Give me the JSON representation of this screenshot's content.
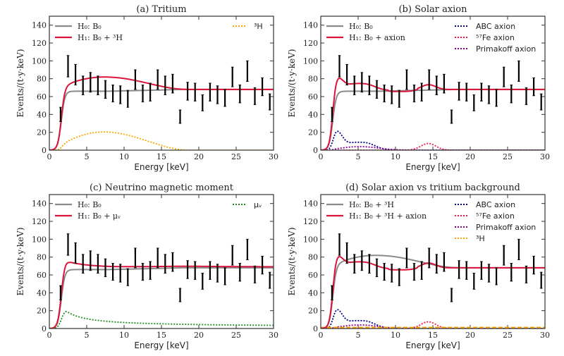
{
  "chart_data": [
    {
      "type": "line",
      "panel": "a",
      "title": "(a) Tritium",
      "xlabel": "Energy [keV]",
      "ylabel": "Events/(t·y·keV)",
      "xlim": [
        0,
        30
      ],
      "ylim": [
        0,
        150
      ],
      "xticks": [
        0,
        5,
        10,
        15,
        20,
        25,
        30
      ],
      "yticks": [
        0,
        20,
        40,
        60,
        80,
        100,
        120,
        140
      ],
      "legend_left": [
        {
          "label": "H₀: B₀",
          "color": "#8a8a8a",
          "style": "solid"
        },
        {
          "label": "H₁: B₀ + ³H",
          "color": "#dc143c",
          "style": "solid"
        }
      ],
      "legend_right": [
        {
          "label": "³H",
          "color": "#ffa500",
          "style": "dotted"
        }
      ],
      "series": [
        {
          "name": "H0",
          "color": "#8a8a8a",
          "style": "solid",
          "model": "flat_bg"
        },
        {
          "name": "H1",
          "color": "#dc143c",
          "style": "solid",
          "model": "bg_plus_tritium"
        },
        {
          "name": "tritium",
          "color": "#ffa500",
          "style": "dotted",
          "model": "tritium"
        }
      ]
    },
    {
      "type": "line",
      "panel": "b",
      "title": "(b) Solar axion",
      "xlabel": "Energy [keV]",
      "ylabel": "Events/(t·y·keV)",
      "xlim": [
        0,
        30
      ],
      "ylim": [
        0,
        150
      ],
      "xticks": [
        0,
        5,
        10,
        15,
        20,
        25,
        30
      ],
      "yticks": [
        0,
        20,
        40,
        60,
        80,
        100,
        120,
        140
      ],
      "legend_left": [
        {
          "label": "H₀: B₀",
          "color": "#8a8a8a",
          "style": "solid"
        },
        {
          "label": "H₁: B₀ + axion",
          "color": "#dc143c",
          "style": "solid"
        }
      ],
      "legend_right": [
        {
          "label": "ABC axion",
          "color": "#00008b",
          "style": "dotted"
        },
        {
          "label": "⁵⁷Fe axion",
          "color": "#ff1744",
          "style": "dotted"
        },
        {
          "label": "Primakoff axion",
          "color": "#8b008b",
          "style": "dotted"
        }
      ],
      "series": [
        {
          "name": "H0",
          "color": "#8a8a8a",
          "style": "solid",
          "model": "flat_bg"
        },
        {
          "name": "H1",
          "color": "#dc143c",
          "style": "solid",
          "model": "bg_plus_axion"
        },
        {
          "name": "ABC",
          "color": "#00008b",
          "style": "dotted",
          "model": "abc"
        },
        {
          "name": "Fe57",
          "color": "#ff1744",
          "style": "dotted",
          "model": "fe57"
        },
        {
          "name": "Primakoff",
          "color": "#8b008b",
          "style": "dotted",
          "model": "primakoff"
        }
      ]
    },
    {
      "type": "line",
      "panel": "c",
      "title": "(c) Neutrino magnetic moment",
      "xlabel": "Energy [keV]",
      "ylabel": "Events/(t·y·keV)",
      "xlim": [
        0,
        30
      ],
      "ylim": [
        0,
        150
      ],
      "xticks": [
        0,
        5,
        10,
        15,
        20,
        25,
        30
      ],
      "yticks": [
        0,
        20,
        40,
        60,
        80,
        100,
        120,
        140
      ],
      "legend_left": [
        {
          "label": "H₀: B₀",
          "color": "#8a8a8a",
          "style": "solid"
        },
        {
          "label": "H₁: B₀ + μᵥ",
          "color": "#dc143c",
          "style": "solid"
        }
      ],
      "legend_right": [
        {
          "label": "μᵥ",
          "color": "#228b22",
          "style": "dotted"
        }
      ],
      "series": [
        {
          "name": "H0",
          "color": "#8a8a8a",
          "style": "solid",
          "model": "flat_bg"
        },
        {
          "name": "H1",
          "color": "#dc143c",
          "style": "solid",
          "model": "bg_plus_mu"
        },
        {
          "name": "mu_nu",
          "color": "#228b22",
          "style": "dotted",
          "model": "mu"
        }
      ]
    },
    {
      "type": "line",
      "panel": "d",
      "title": "(d) Solar axion vs tritium background",
      "xlabel": "Energy [keV]",
      "ylabel": "Events/(t·y·keV)",
      "xlim": [
        0,
        30
      ],
      "ylim": [
        0,
        150
      ],
      "xticks": [
        0,
        5,
        10,
        15,
        20,
        25,
        30
      ],
      "yticks": [
        0,
        20,
        40,
        60,
        80,
        100,
        120,
        140
      ],
      "legend_left": [
        {
          "label": "H₀: B₀ + ³H",
          "color": "#8a8a8a",
          "style": "solid"
        },
        {
          "label": "H₁: B₀ + ³H + axion",
          "color": "#dc143c",
          "style": "solid"
        }
      ],
      "legend_right": [
        {
          "label": "ABC axion",
          "color": "#00008b",
          "style": "dotted"
        },
        {
          "label": "⁵⁷Fe axion",
          "color": "#ff1744",
          "style": "dotted"
        },
        {
          "label": "Primakoff axion",
          "color": "#8b008b",
          "style": "dotted"
        },
        {
          "label": "³H",
          "color": "#ffa500",
          "style": "dashed"
        }
      ],
      "series": [
        {
          "name": "H0",
          "color": "#8a8a8a",
          "style": "solid",
          "model": "bg_plus_tritium"
        },
        {
          "name": "H1",
          "color": "#dc143c",
          "style": "solid",
          "model": "bg_plus_axion"
        },
        {
          "name": "ABC",
          "color": "#00008b",
          "style": "dotted",
          "model": "abc"
        },
        {
          "name": "Fe57",
          "color": "#ff1744",
          "style": "dotted",
          "model": "fe57"
        },
        {
          "name": "Primakoff",
          "color": "#8b008b",
          "style": "dotted",
          "model": "primakoff"
        },
        {
          "name": "tritium_small",
          "color": "#ffa500",
          "style": "dashed",
          "model": "tritium_small"
        }
      ]
    }
  ],
  "data_points": {
    "energy": [
      1.5,
      2.5,
      3.5,
      4.5,
      5.5,
      6.5,
      7.5,
      8.5,
      9.5,
      10.5,
      11.5,
      12.5,
      13.5,
      14.5,
      15.5,
      16.5,
      17.5,
      18.5,
      19.5,
      20.5,
      21.5,
      22.5,
      23.5,
      24.5,
      25.5,
      26.5,
      27.5,
      28.5,
      29.5
    ],
    "value": [
      40,
      94,
      85,
      72,
      76,
      72,
      68,
      63,
      62,
      57,
      79,
      63,
      65,
      79,
      72,
      74,
      37,
      66,
      65,
      52,
      65,
      62,
      58,
      82,
      63,
      88,
      60,
      71,
      54
    ],
    "low": [
      32,
      82,
      73,
      62,
      65,
      62,
      58,
      54,
      52,
      48,
      68,
      54,
      55,
      68,
      62,
      64,
      30,
      56,
      55,
      44,
      55,
      52,
      49,
      71,
      53,
      77,
      51,
      61,
      45
    ],
    "high": [
      48,
      106,
      96,
      83,
      87,
      83,
      78,
      73,
      72,
      67,
      90,
      73,
      75,
      90,
      83,
      85,
      45,
      76,
      75,
      62,
      75,
      72,
      68,
      93,
      73,
      100,
      70,
      81,
      63
    ]
  }
}
